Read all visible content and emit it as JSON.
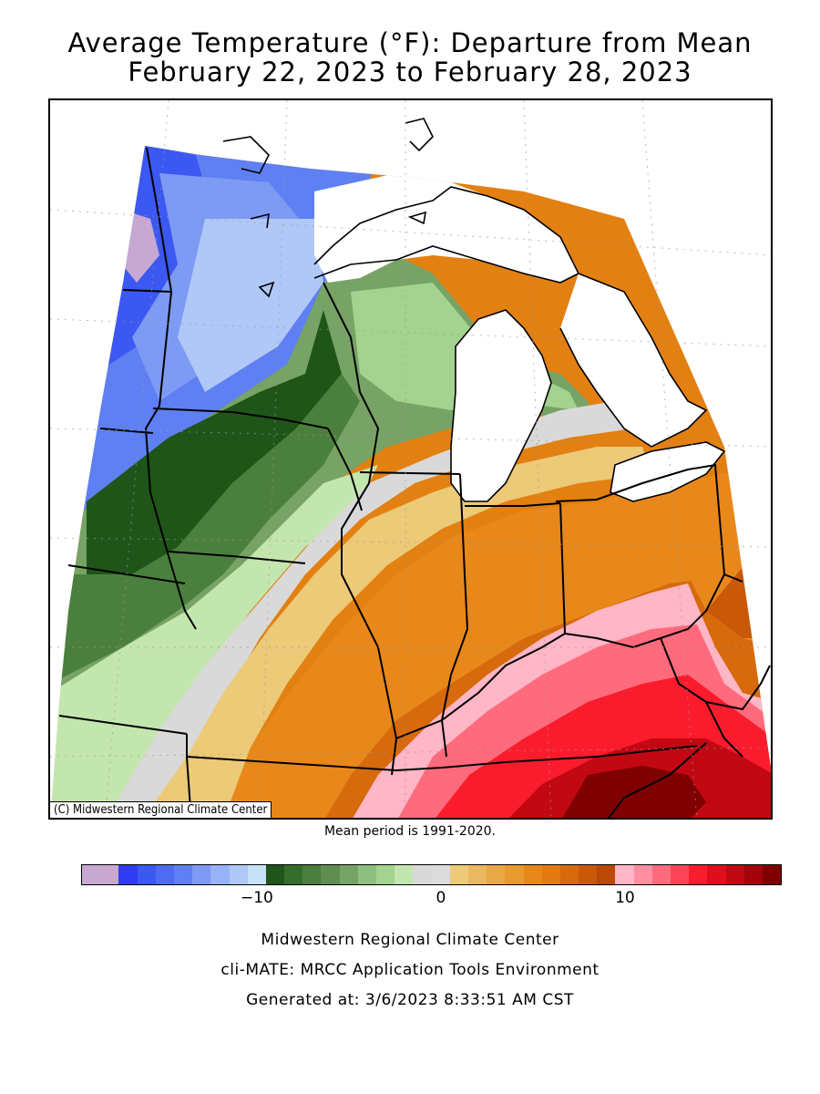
{
  "title": {
    "line1": "Average Temperature (°F): Departure from Mean",
    "line2": "February 22, 2023 to February 28, 2023"
  },
  "map": {
    "copyright": "(C) Midwestern Regional Climate Center",
    "mean_period": "Mean period is 1991-2020."
  },
  "legend": {
    "colors": [
      "#c7a8d3",
      "#c8a8cf",
      "#2f3cf2",
      "#3c58f2",
      "#4d6cf2",
      "#5f80f2",
      "#7d9af4",
      "#97b2f6",
      "#b0c8f7",
      "#c7e2f7",
      "#1f5518",
      "#356e2a",
      "#4b7f3e",
      "#5f8e50",
      "#77a366",
      "#8ec07f",
      "#a4d28f",
      "#c3e6ae",
      "#d9d9d9",
      "#dcdcdc",
      "#ecca78",
      "#e9b860",
      "#e8a847",
      "#e89a2e",
      "#e8881a",
      "#e37a12",
      "#d66a0c",
      "#c95908",
      "#b84a05",
      "#ffb6c6",
      "#ff8fa0",
      "#ff6b7c",
      "#ff4457",
      "#fa1c2d",
      "#e00d1d",
      "#c20812",
      "#a3030b",
      "#7f0000"
    ],
    "tick_labels": [
      {
        "label": "−10",
        "value": -10
      },
      {
        "label": "0",
        "value": 0
      },
      {
        "label": "10",
        "value": 10
      }
    ]
  },
  "footer": {
    "line1": "Midwestern Regional Climate Center",
    "line2": "cli-MATE: MRCC Application Tools Environment",
    "line3": "Generated at: 3/6/2023 8:33:51 AM CST"
  }
}
